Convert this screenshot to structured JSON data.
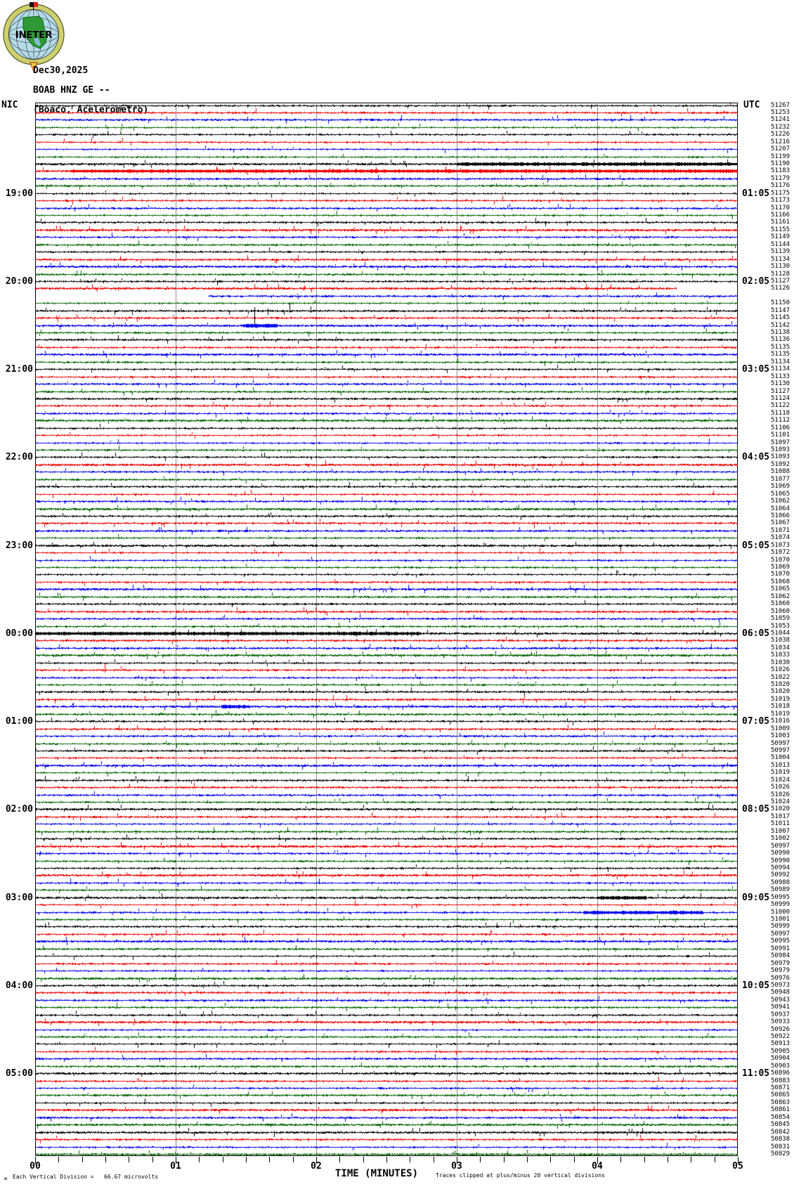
{
  "header": {
    "date": "Dec30,2025",
    "station": "BOAB HNZ GE --",
    "location": "(Boaco, Acelerometro)"
  },
  "logo": {
    "text": "INETER"
  },
  "corner_labels": {
    "left": "NIC",
    "right": "UTC"
  },
  "x_axis": {
    "title": "TIME (MINUTES)",
    "tick_labels": [
      "00",
      "01",
      "02",
      "03",
      "04",
      "05"
    ]
  },
  "footer": {
    "division_note": "Each Vertical Division =   66.67 microvolts",
    "clip_note": "Traces clipped at plus/minus 20 vertical divisions",
    "corner_mark": "ʍ"
  },
  "colors": {
    "trace_cycle": [
      "#000000",
      "#ee0000",
      "#0000ee",
      "#006600"
    ],
    "grid": "#8f8f8f",
    "frame": "#000000",
    "background": "#ffffff"
  },
  "chart_data": {
    "type": "line",
    "kind": "helicorder-seismogram",
    "minutes_per_line": 5,
    "x_range_minutes": [
      0,
      5
    ],
    "rows_total": 144,
    "color_cycle": [
      "#000000",
      "#ee0000",
      "#0000ee",
      "#006600"
    ],
    "nic_hour_labels": {
      "13": "19:00",
      "25": "20:00",
      "37": "21:00",
      "49": "22:00",
      "61": "23:00",
      "73": "00:00",
      "85": "01:00",
      "97": "02:00",
      "109": "03:00",
      "121": "04:00",
      "133": "05:00"
    },
    "utc_hour_labels": {
      "13": "01:05",
      "25": "02:05",
      "37": "03:05",
      "49": "04:05",
      "61": "05:05",
      "73": "06:05",
      "85": "07:05",
      "97": "08:05",
      "109": "09:05",
      "121": "10:05",
      "133": "11:05"
    },
    "counts": [
      51267,
      51253,
      51241,
      51232,
      51226,
      51216,
      51207,
      51199,
      51190,
      51183,
      51179,
      51176,
      51175,
      51173,
      51170,
      51166,
      51161,
      51155,
      51149,
      51144,
      51139,
      51134,
      51130,
      51128,
      51127,
      51126,
      null,
      51150,
      51147,
      51145,
      51142,
      51138,
      51136,
      51135,
      51135,
      51134,
      51134,
      51133,
      51130,
      51127,
      51124,
      51122,
      51118,
      51112,
      51106,
      51101,
      51097,
      51093,
      51093,
      51092,
      51088,
      51077,
      51069,
      51065,
      51062,
      51064,
      51066,
      51067,
      51071,
      51074,
      51073,
      51072,
      51070,
      51069,
      51070,
      51068,
      51065,
      51062,
      51060,
      51060,
      51059,
      51053,
      51044,
      51038,
      51034,
      51033,
      51030,
      51026,
      51022,
      51020,
      51020,
      51019,
      51018,
      51019,
      51016,
      51009,
      51003,
      50997,
      50997,
      51004,
      51013,
      51019,
      51024,
      51026,
      51026,
      51024,
      51020,
      51017,
      51011,
      51007,
      51002,
      50997,
      50990,
      50990,
      50994,
      50992,
      50988,
      50989,
      50995,
      50999,
      51000,
      51001,
      50999,
      50997,
      50995,
      50991,
      50984,
      50979,
      50979,
      50976,
      50973,
      50948,
      50943,
      50941,
      50937,
      50933,
      50926,
      50922,
      50913,
      50905,
      50904,
      50903,
      50896,
      50883,
      50871,
      50865,
      50863,
      50861,
      50854,
      50845,
      50842,
      50838,
      50831,
      50829
    ],
    "partial_rows": {
      "26": {
        "x_end": 0.913
      },
      "27": {
        "x_start": 0.246
      }
    },
    "active_rows": [
      9,
      10,
      18,
      23,
      26,
      31,
      35,
      44,
      50,
      56,
      61,
      67,
      73,
      76,
      83,
      91,
      97,
      102,
      106,
      109,
      115,
      120,
      126,
      133,
      138,
      140,
      141
    ],
    "events": [
      {
        "row": 3,
        "x": 0.357,
        "up": 1,
        "down": 5
      },
      {
        "row": 3,
        "x": 0.462,
        "up": 1,
        "down": 4
      },
      {
        "row": 29,
        "x": 0.312,
        "up": 5,
        "down": 19
      },
      {
        "row": 29,
        "x": 0.331,
        "up": 3,
        "down": 5
      },
      {
        "row": 29,
        "x": 0.362,
        "up": 11,
        "down": 2
      },
      {
        "row": 29,
        "x": 0.392,
        "up": 6,
        "down": 2
      },
      {
        "row": 44,
        "x": 0.302,
        "up": 5,
        "down": 2
      },
      {
        "row": 58,
        "x": 0.71,
        "up": 2,
        "down": 7
      },
      {
        "row": 78,
        "x": 0.099,
        "up": 9,
        "down": 3
      },
      {
        "row": 141,
        "x": 0.34,
        "up": 2,
        "down": 6
      }
    ],
    "bursts": [
      {
        "row": 9,
        "x0": 0.6,
        "x1": 1.0,
        "amp": 1.5
      },
      {
        "row": 10,
        "x0": 0.05,
        "x1": 1.0,
        "amp": 1.2
      },
      {
        "row": 31,
        "x0": 0.295,
        "x1": 0.345,
        "amp": 2.2
      },
      {
        "row": 73,
        "x0": 0.0,
        "x1": 0.55,
        "amp": 1.3
      },
      {
        "row": 83,
        "x0": 0.265,
        "x1": 0.305,
        "amp": 2.4
      },
      {
        "row": 109,
        "x0": 0.8,
        "x1": 0.87,
        "amp": 2.0
      },
      {
        "row": 111,
        "x0": 0.78,
        "x1": 0.95,
        "amp": 1.6
      }
    ]
  }
}
